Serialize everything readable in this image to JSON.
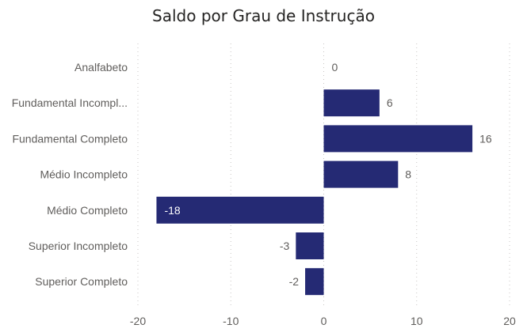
{
  "chart_data": {
    "type": "bar",
    "orientation": "horizontal",
    "title": "Saldo por Grau de Instrução",
    "xlabel": "",
    "ylabel": "",
    "categories": [
      "Analfabeto",
      "Fundamental Incompl...",
      "Fundamental Completo",
      "Médio Incompleto",
      "Médio Completo",
      "Superior Incompleto",
      "Superior Completo"
    ],
    "values": [
      0,
      6,
      16,
      8,
      -18,
      -3,
      -2
    ],
    "xlim": [
      -20,
      20
    ],
    "xticks": [
      -20,
      -10,
      0,
      10,
      20
    ],
    "grid": "vertical dotted",
    "bar_color": "#252a74",
    "legend": "none"
  }
}
